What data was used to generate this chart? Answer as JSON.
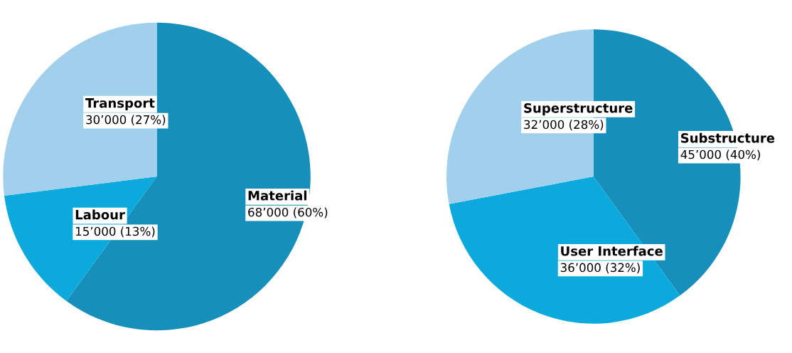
{
  "chart_data": [
    {
      "type": "pie",
      "categories": [
        "Material",
        "Labour",
        "Transport"
      ],
      "values": [
        60,
        13,
        27
      ],
      "value_labels": [
        "68’000 (60%)",
        "15’000 (13%)",
        "30’000 (27%)"
      ],
      "colors": [
        "#168fba",
        "#0ca9dc",
        "#a0d0ec"
      ]
    },
    {
      "type": "pie",
      "categories": [
        "Substructure",
        "User Interface",
        "Superstructure"
      ],
      "values": [
        40,
        32,
        28
      ],
      "value_labels": [
        "45’000 (40%)",
        "36’000 (32%)",
        "32’000 (28%)"
      ],
      "colors": [
        "#168fba",
        "#0ca9dc",
        "#a0d0ec"
      ]
    }
  ]
}
